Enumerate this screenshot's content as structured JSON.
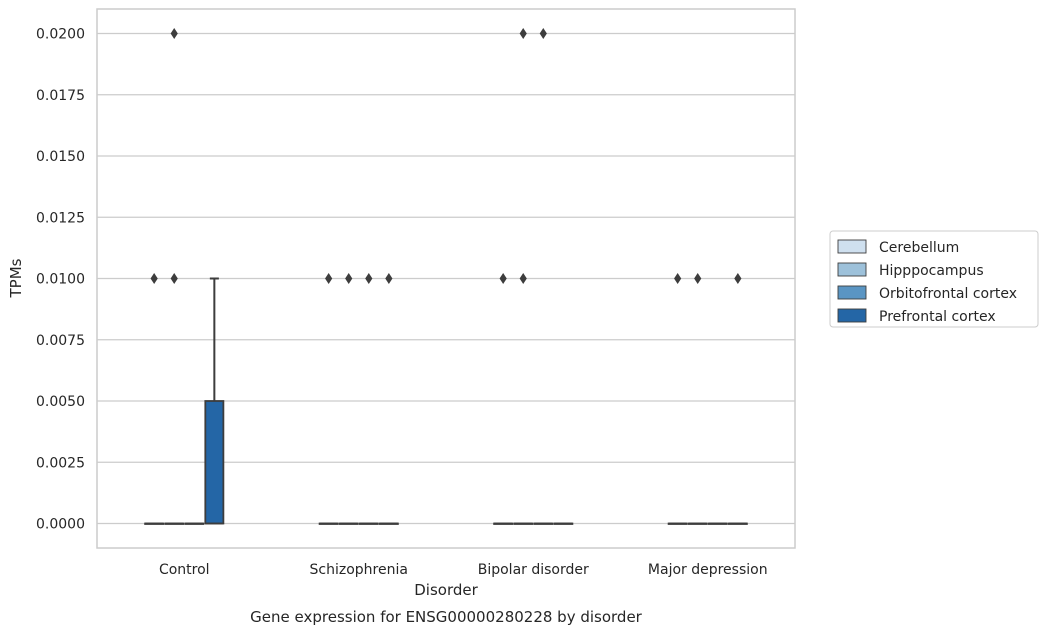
{
  "chart_data": {
    "type": "box",
    "title": "Gene expression for ENSG00000280228 by disorder",
    "xlabel": "Disorder",
    "ylabel": "TPMs",
    "ylim": [
      -0.001,
      0.021
    ],
    "yticks": [
      "0.0000",
      "0.0025",
      "0.0050",
      "0.0075",
      "0.0100",
      "0.0125",
      "0.0150",
      "0.0175",
      "0.0200"
    ],
    "ytick_values": [
      0,
      0.0025,
      0.005,
      0.0075,
      0.01,
      0.0125,
      0.015,
      0.0175,
      0.02
    ],
    "grid": true,
    "legend_position": "right",
    "categories": [
      "Control",
      "Schizophrenia",
      "Bipolar disorder",
      "Major depression"
    ],
    "series": [
      {
        "name": "Cerebellum",
        "color": "#cfe0ef",
        "boxes": [
          {
            "q1": 0,
            "median": 0,
            "q3": 0,
            "whisker_low": 0,
            "whisker_high": 0,
            "outliers": [
              0.01
            ]
          },
          {
            "q1": 0,
            "median": 0,
            "q3": 0,
            "whisker_low": 0,
            "whisker_high": 0,
            "outliers": [
              0.01
            ]
          },
          {
            "q1": 0,
            "median": 0,
            "q3": 0,
            "whisker_low": 0,
            "whisker_high": 0,
            "outliers": [
              0.01
            ]
          },
          {
            "q1": 0,
            "median": 0,
            "q3": 0,
            "whisker_low": 0,
            "whisker_high": 0,
            "outliers": [
              0.01
            ]
          }
        ]
      },
      {
        "name": "Hipppocampus",
        "color": "#9dc1da",
        "boxes": [
          {
            "q1": 0,
            "median": 0,
            "q3": 0,
            "whisker_low": 0,
            "whisker_high": 0,
            "outliers": [
              0.02,
              0.01
            ]
          },
          {
            "q1": 0,
            "median": 0,
            "q3": 0,
            "whisker_low": 0,
            "whisker_high": 0,
            "outliers": [
              0.01
            ]
          },
          {
            "q1": 0,
            "median": 0,
            "q3": 0,
            "whisker_low": 0,
            "whisker_high": 0,
            "outliers": [
              0.02,
              0.01
            ]
          },
          {
            "q1": 0,
            "median": 0,
            "q3": 0,
            "whisker_low": 0,
            "whisker_high": 0,
            "outliers": [
              0.01
            ]
          }
        ]
      },
      {
        "name": "Orbitofrontal cortex",
        "color": "#5a95c3",
        "boxes": [
          {
            "q1": 0,
            "median": 0,
            "q3": 0,
            "whisker_low": 0,
            "whisker_high": 0,
            "outliers": []
          },
          {
            "q1": 0,
            "median": 0,
            "q3": 0,
            "whisker_low": 0,
            "whisker_high": 0,
            "outliers": [
              0.01
            ]
          },
          {
            "q1": 0,
            "median": 0,
            "q3": 0,
            "whisker_low": 0,
            "whisker_high": 0,
            "outliers": [
              0.02
            ]
          },
          {
            "q1": 0,
            "median": 0,
            "q3": 0,
            "whisker_low": 0,
            "whisker_high": 0,
            "outliers": []
          }
        ]
      },
      {
        "name": "Prefrontal cortex",
        "color": "#2466a6",
        "boxes": [
          {
            "q1": 0,
            "median": 0,
            "q3": 0.005,
            "whisker_low": 0,
            "whisker_high": 0.01,
            "outliers": []
          },
          {
            "q1": 0,
            "median": 0,
            "q3": 0,
            "whisker_low": 0,
            "whisker_high": 0,
            "outliers": [
              0.01
            ]
          },
          {
            "q1": 0,
            "median": 0,
            "q3": 0,
            "whisker_low": 0,
            "whisker_high": 0,
            "outliers": []
          },
          {
            "q1": 0,
            "median": 0,
            "q3": 0,
            "whisker_low": 0,
            "whisker_high": 0,
            "outliers": [
              0.01
            ]
          }
        ]
      }
    ]
  }
}
